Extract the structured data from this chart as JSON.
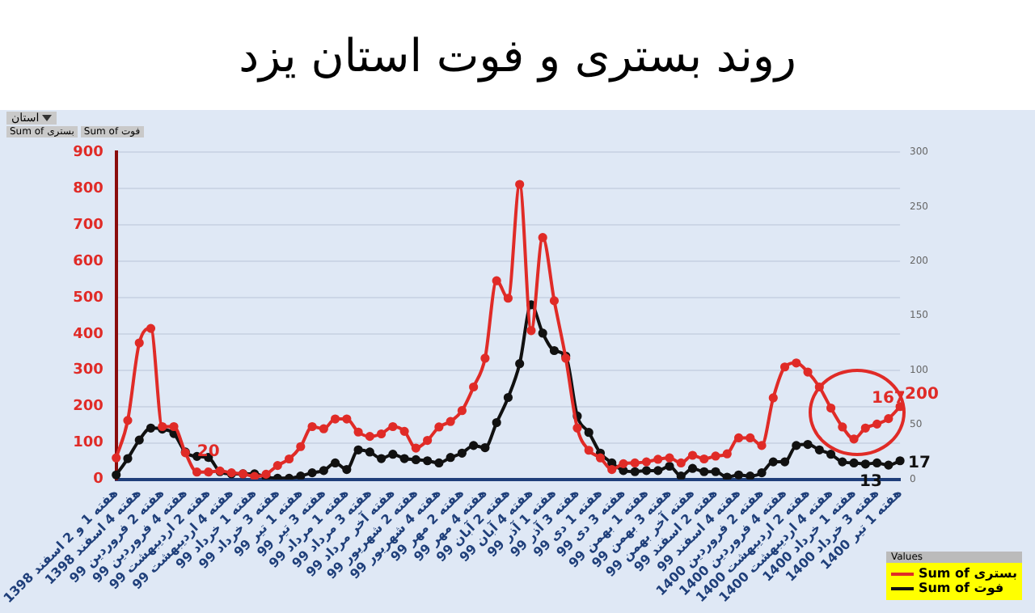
{
  "chart_data": {
    "type": "line",
    "title": "روند بستری و فوت استان یزد",
    "annotations": [
      "استان"
    ],
    "categories": [
      "هفته 1 و 2 اسفند 1398",
      null,
      "هفته 4 اسفند 1398",
      null,
      "هفته 2 فروردین 99",
      null,
      "هفته 4 فروردین 99",
      null,
      "هفته 2 اردیبهشت 99",
      null,
      "هفته 4 اردیبهشت 99",
      null,
      "هفته 1 خرداد 99",
      null,
      "هفته 3 خرداد 99",
      null,
      "هفته 1 تیر 99",
      null,
      "هفته 3 تیر 99",
      null,
      "هفته 1 مرداد 99",
      null,
      "هفته 3 مرداد 99",
      null,
      "هفته آخر مرداد 99",
      null,
      "هفته 2 شهریور 99",
      null,
      "هفته 4 شهریور 99",
      null,
      "هفته 2 مهر 99",
      null,
      "هفته 4 مهر 99",
      null,
      "هفته 2 آبان 99",
      null,
      "هفته 4 آبان 99",
      null,
      "هفته 1 آذر 99",
      null,
      "هفته 3 آذر 99",
      null,
      "هفته 1 دی 99",
      null,
      "هفته 3 دی 99",
      null,
      "هفته 1 بهمن 99",
      null,
      "هفته 3 بهمن 99",
      null,
      "هفته آخر بهمن 99",
      null,
      "هفته 2 اسفند 99",
      null,
      "هفته 4 اسفند 99",
      null,
      "هفته 2 فروردین 1400",
      null,
      "هفته 4 فروردین 1400",
      null,
      "هفته 2 اردیبهشت 1400",
      null,
      "هفته 4 اردیبهشت 1400",
      null,
      "هفته 1 خرداد 1400",
      null,
      "هفته 3 خرداد 1400",
      null,
      "هفته 1 تیر 1400"
    ],
    "series": [
      {
        "name": "Sum of بستری",
        "color": "#e02b27",
        "values": [
          59,
          162,
          375,
          415,
          145,
          145,
          73,
          20,
          20,
          23,
          18,
          15,
          8,
          14,
          38,
          56,
          90,
          145,
          139,
          166,
          166,
          130,
          118,
          125,
          145,
          132,
          86,
          107,
          144,
          159,
          189,
          254,
          333,
          546,
          498,
          811,
          409,
          665,
          491,
          333,
          141,
          80,
          59,
          27,
          43,
          45,
          48,
          55,
          59,
          45,
          66,
          56,
          64,
          70,
          114,
          114,
          93,
          224,
          309,
          320,
          295,
          254,
          196,
          144,
          111,
          141,
          152,
          167,
          200
        ],
        "value_labels": [
          null,
          null,
          null,
          null,
          null,
          null,
          null,
          null,
          "20",
          null,
          null,
          null,
          null,
          null,
          null,
          null,
          null,
          null,
          null,
          null,
          null,
          null,
          null,
          null,
          null,
          null,
          null,
          null,
          null,
          null,
          null,
          null,
          null,
          null,
          null,
          null,
          null,
          null,
          null,
          null,
          null,
          null,
          null,
          null,
          null,
          null,
          null,
          null,
          null,
          null,
          null,
          null,
          null,
          null,
          null,
          null,
          null,
          null,
          null,
          null,
          null,
          null,
          null,
          null,
          null,
          null,
          null,
          "167",
          "200"
        ]
      },
      {
        "name": "Sum of فوت",
        "color": "#111111",
        "axis": "y2",
        "values": [
          4,
          19,
          36,
          47,
          46,
          42,
          25,
          21,
          20,
          7,
          5,
          5,
          5,
          2,
          1,
          1,
          3,
          6,
          8,
          15,
          9,
          27,
          25,
          19,
          23,
          19,
          18,
          17,
          15,
          20,
          24,
          31,
          29,
          52,
          75,
          106,
          160,
          134,
          118,
          113,
          58,
          43,
          24,
          15,
          8,
          7,
          8,
          8,
          12,
          3,
          10,
          7,
          7,
          2,
          4,
          3,
          6,
          16,
          16,
          31,
          32,
          27,
          23,
          16,
          15,
          14,
          15,
          13,
          17
        ],
        "value_labels": [
          null,
          null,
          null,
          null,
          null,
          null,
          null,
          null,
          null,
          null,
          null,
          null,
          null,
          null,
          null,
          null,
          null,
          null,
          null,
          null,
          null,
          null,
          null,
          null,
          null,
          null,
          null,
          null,
          null,
          null,
          null,
          null,
          null,
          null,
          null,
          null,
          null,
          null,
          null,
          null,
          null,
          null,
          null,
          null,
          null,
          null,
          null,
          null,
          null,
          null,
          null,
          null,
          null,
          null,
          null,
          null,
          null,
          null,
          null,
          null,
          null,
          null,
          null,
          null,
          null,
          null,
          null,
          "13",
          "17"
        ]
      }
    ],
    "ylim": [
      0,
      900
    ],
    "yticks": [
      0,
      100,
      200,
      300,
      400,
      500,
      600,
      700,
      800,
      900
    ],
    "y2lim": [
      0,
      300
    ],
    "y2ticks": [
      0,
      50,
      100,
      150,
      200,
      250,
      300
    ],
    "grid": "y",
    "legend": "bottom right",
    "legend_title": "Values",
    "marker": "circle"
  }
}
